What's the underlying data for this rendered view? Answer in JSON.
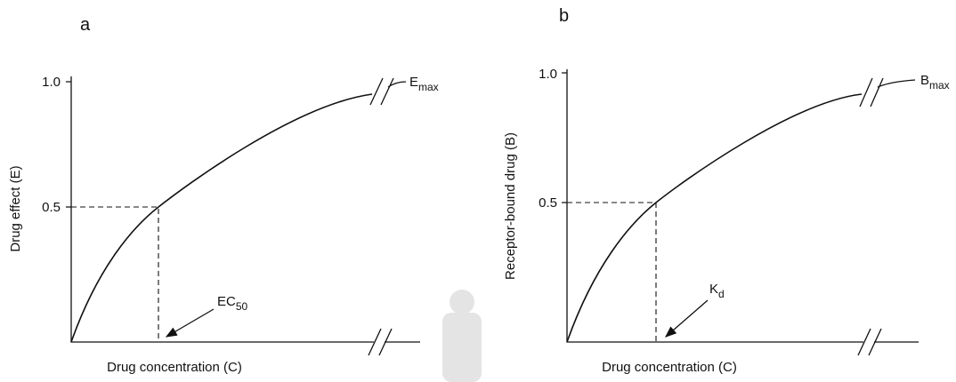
{
  "panels": [
    {
      "letter": "a",
      "y_label": "Drug effect (E)",
      "x_label": "Drug concentration (C)",
      "yticks": [
        "1.0",
        "0.5"
      ],
      "max_label": {
        "main": "E",
        "sub": "max"
      },
      "half_label": {
        "main": "EC",
        "sub": "50"
      }
    },
    {
      "letter": "b",
      "y_label": "Receptor-bound drug (B)",
      "x_label": "Drug concentration (C)",
      "yticks": [
        "1.0",
        "0.5"
      ],
      "max_label": {
        "main": "B",
        "sub": "max"
      },
      "half_label": {
        "main": "K",
        "sub": "d"
      }
    }
  ]
}
